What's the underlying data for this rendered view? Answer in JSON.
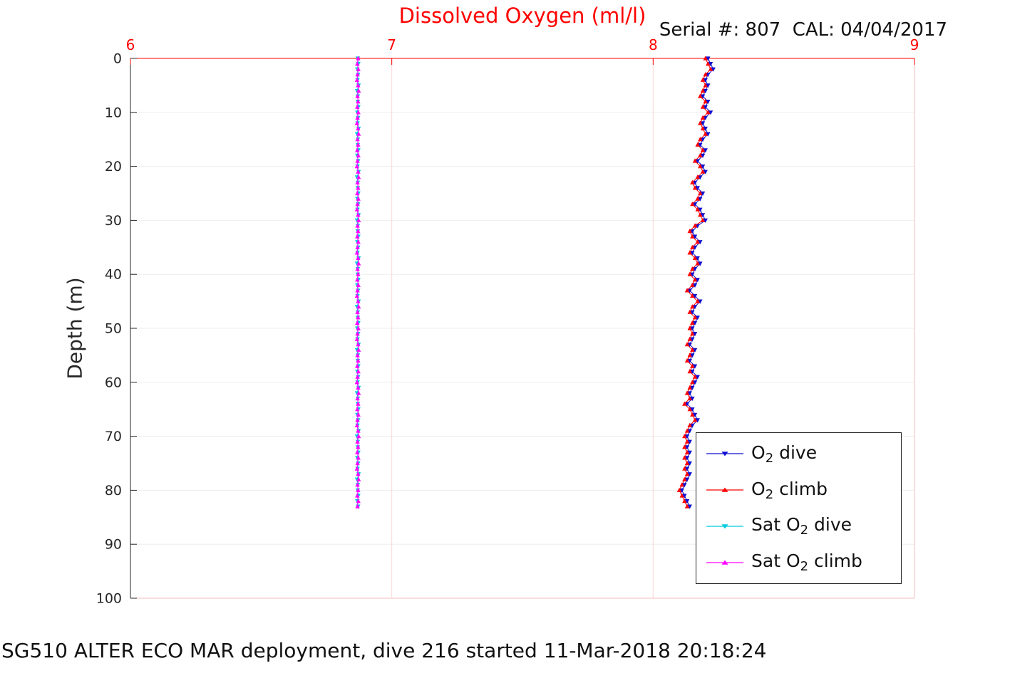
{
  "header": {
    "serial_cal": "Serial #: 807  CAL: 04/04/2017"
  },
  "footer": {
    "caption": "SG510 ALTER ECO MAR deployment, dive 216 started 11-Mar-2018 20:18:24"
  },
  "colors": {
    "title": "#ff0000",
    "text": "#111111"
  },
  "chart_data": {
    "type": "scatter",
    "title": "Dissolved Oxygen (ml/l)",
    "xlabel": "",
    "ylabel": "Depth (m)",
    "xlim": [
      6,
      9
    ],
    "ylim": [
      0,
      100
    ],
    "x_ticks": [
      6,
      7,
      8,
      9
    ],
    "y_ticks": [
      0,
      10,
      20,
      30,
      40,
      50,
      60,
      70,
      80,
      90,
      100
    ],
    "x_axis_location": "top",
    "y_axis_direction": "reverse",
    "grid": true,
    "legend_position": "inside-right-lower",
    "colors": {
      "x_axis": "#ff0000",
      "y_axis": "#262626",
      "grid_x": "#fbd7d7",
      "grid_y": "#ededed",
      "box_far": "#f3bcbc"
    },
    "depths": [
      0,
      1,
      2,
      3,
      4,
      5,
      6,
      7,
      8,
      9,
      10,
      11,
      12,
      13,
      14,
      15,
      16,
      17,
      18,
      19,
      20,
      21,
      22,
      23,
      24,
      25,
      26,
      27,
      28,
      29,
      30,
      31,
      32,
      33,
      34,
      35,
      36,
      37,
      38,
      39,
      40,
      41,
      42,
      43,
      44,
      45,
      46,
      47,
      48,
      49,
      50,
      51,
      52,
      53,
      54,
      55,
      56,
      57,
      58,
      59,
      60,
      61,
      62,
      63,
      64,
      65,
      66,
      67,
      68,
      69,
      70,
      71,
      72,
      73,
      74,
      75,
      76,
      77,
      78,
      79,
      80,
      81,
      82,
      83
    ],
    "series": [
      {
        "key": "o2-dive",
        "name_pre": "O",
        "name_sub": "2",
        "name_post": " dive",
        "color": "#0f0fd0",
        "marker": "v",
        "values": [
          8.21,
          8.22,
          8.23,
          8.21,
          8.2,
          8.21,
          8.2,
          8.19,
          8.21,
          8.2,
          8.22,
          8.2,
          8.19,
          8.2,
          8.21,
          8.19,
          8.18,
          8.2,
          8.19,
          8.17,
          8.19,
          8.2,
          8.18,
          8.16,
          8.17,
          8.19,
          8.18,
          8.16,
          8.18,
          8.19,
          8.2,
          8.17,
          8.15,
          8.16,
          8.18,
          8.16,
          8.15,
          8.17,
          8.18,
          8.16,
          8.15,
          8.17,
          8.16,
          8.14,
          8.16,
          8.18,
          8.16,
          8.15,
          8.17,
          8.16,
          8.15,
          8.16,
          8.15,
          8.14,
          8.16,
          8.15,
          8.14,
          8.16,
          8.15,
          8.17,
          8.16,
          8.15,
          8.14,
          8.15,
          8.13,
          8.15,
          8.16,
          8.17,
          8.15,
          8.14,
          8.13,
          8.14,
          8.13,
          8.14,
          8.13,
          8.14,
          8.13,
          8.14,
          8.13,
          8.12,
          8.11,
          8.12,
          8.13,
          8.14
        ]
      },
      {
        "key": "o2-climb",
        "name_pre": "O",
        "name_sub": "2",
        "name_post": " climb",
        "color": "#ff0000",
        "marker": "^",
        "values": [
          8.2,
          8.21,
          8.22,
          8.2,
          8.19,
          8.2,
          8.19,
          8.18,
          8.2,
          8.19,
          8.21,
          8.19,
          8.18,
          8.19,
          8.2,
          8.18,
          8.17,
          8.19,
          8.18,
          8.16,
          8.18,
          8.19,
          8.17,
          8.15,
          8.16,
          8.18,
          8.17,
          8.15,
          8.17,
          8.18,
          8.19,
          8.16,
          8.14,
          8.15,
          8.17,
          8.15,
          8.14,
          8.16,
          8.17,
          8.15,
          8.14,
          8.16,
          8.15,
          8.13,
          8.15,
          8.17,
          8.15,
          8.14,
          8.16,
          8.15,
          8.14,
          8.15,
          8.14,
          8.13,
          8.15,
          8.14,
          8.13,
          8.15,
          8.14,
          8.16,
          8.15,
          8.14,
          8.13,
          8.14,
          8.12,
          8.14,
          8.15,
          8.16,
          8.14,
          8.13,
          8.12,
          8.13,
          8.12,
          8.13,
          8.12,
          8.13,
          8.12,
          8.13,
          8.12,
          8.11,
          8.1,
          8.11,
          8.12,
          8.13
        ]
      },
      {
        "key": "sat-o2-dive",
        "name_pre": "Sat O",
        "name_sub": "2",
        "name_post": " dive",
        "color": "#00ccdd",
        "marker": "v",
        "values": [
          6.87,
          6.872,
          6.868,
          6.871,
          6.869,
          6.873,
          6.867,
          6.87,
          6.87,
          6.872,
          6.868,
          6.871,
          6.869,
          6.873,
          6.867,
          6.87,
          6.87,
          6.872,
          6.868,
          6.871,
          6.869,
          6.873,
          6.867,
          6.87,
          6.87,
          6.872,
          6.868,
          6.871,
          6.869,
          6.873,
          6.867,
          6.87,
          6.87,
          6.872,
          6.868,
          6.871,
          6.869,
          6.873,
          6.867,
          6.87,
          6.87,
          6.872,
          6.868,
          6.871,
          6.869,
          6.873,
          6.867,
          6.87,
          6.87,
          6.872,
          6.868,
          6.871,
          6.869,
          6.873,
          6.867,
          6.87,
          6.87,
          6.872,
          6.868,
          6.871,
          6.869,
          6.873,
          6.867,
          6.87,
          6.87,
          6.872,
          6.868,
          6.871,
          6.869,
          6.873,
          6.867,
          6.87,
          6.87,
          6.872,
          6.868,
          6.871,
          6.869,
          6.873,
          6.867,
          6.87,
          6.87,
          6.872,
          6.868,
          6.871
        ]
      },
      {
        "key": "sat-o2-climb",
        "name_pre": "Sat O",
        "name_sub": "2",
        "name_post": " climb",
        "color": "#ff00ff",
        "marker": "^",
        "values": [
          6.871,
          6.868,
          6.872,
          6.869,
          6.867,
          6.871,
          6.873,
          6.869,
          6.871,
          6.868,
          6.872,
          6.869,
          6.867,
          6.871,
          6.873,
          6.869,
          6.871,
          6.868,
          6.872,
          6.869,
          6.867,
          6.871,
          6.873,
          6.869,
          6.871,
          6.868,
          6.872,
          6.869,
          6.867,
          6.871,
          6.873,
          6.869,
          6.871,
          6.868,
          6.872,
          6.869,
          6.867,
          6.871,
          6.873,
          6.869,
          6.871,
          6.868,
          6.872,
          6.869,
          6.867,
          6.871,
          6.873,
          6.869,
          6.871,
          6.868,
          6.872,
          6.869,
          6.867,
          6.871,
          6.873,
          6.869,
          6.871,
          6.868,
          6.872,
          6.869,
          6.867,
          6.871,
          6.873,
          6.869,
          6.871,
          6.868,
          6.872,
          6.869,
          6.867,
          6.871,
          6.873,
          6.869,
          6.871,
          6.868,
          6.872,
          6.869,
          6.867,
          6.871,
          6.873,
          6.869,
          6.871,
          6.868,
          6.872,
          6.869
        ]
      }
    ]
  }
}
